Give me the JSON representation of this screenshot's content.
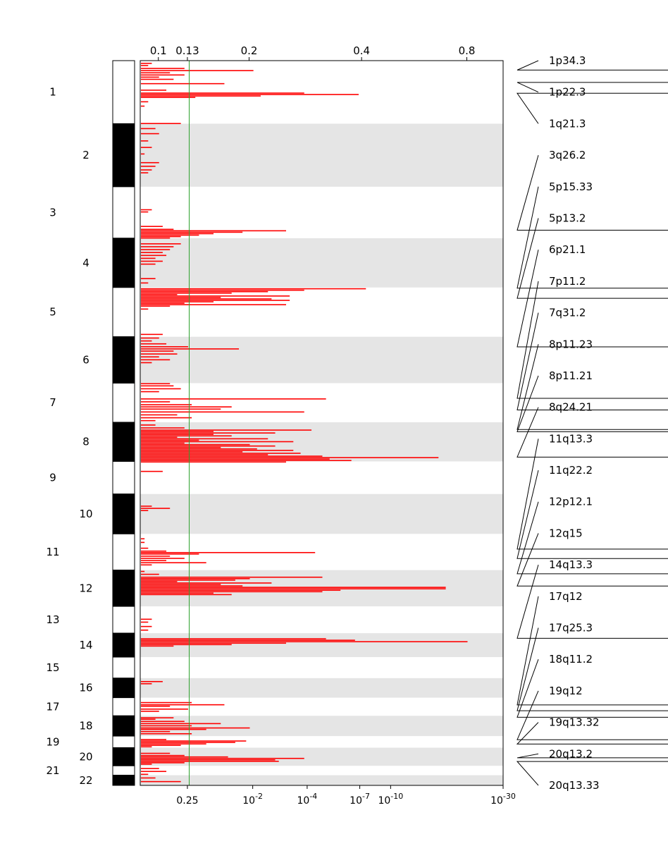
{
  "chart_data": {
    "type": "bar",
    "orientation": "horizontal",
    "description": "Genome-wide copy-number significance plot by chromosome",
    "top_axis_ticks": [
      "0.1",
      "0.13",
      "0.2",
      "0.4",
      "0.8"
    ],
    "top_axis_positions": [
      0.05,
      0.13,
      0.3,
      0.61,
      0.9
    ],
    "bottom_axis_ticks": [
      {
        "base": "0.25",
        "exp": "",
        "pos": 0.13
      },
      {
        "base": "10",
        "exp": "-2",
        "pos": 0.31
      },
      {
        "base": "10",
        "exp": "-4",
        "pos": 0.46
      },
      {
        "base": "10",
        "exp": "-7",
        "pos": 0.605
      },
      {
        "base": "10",
        "exp": "-10",
        "pos": 0.69
      },
      {
        "base": "10",
        "exp": "-30",
        "pos": 1.0
      }
    ],
    "threshold_value": "0.25",
    "threshold_pos": 0.135,
    "chromosomes": [
      {
        "name": "1",
        "start": 0.0,
        "end": 0.087
      },
      {
        "name": "2",
        "start": 0.087,
        "end": 0.174
      },
      {
        "name": "3",
        "start": 0.174,
        "end": 0.245
      },
      {
        "name": "4",
        "start": 0.245,
        "end": 0.313
      },
      {
        "name": "5",
        "start": 0.313,
        "end": 0.381
      },
      {
        "name": "6",
        "start": 0.381,
        "end": 0.445
      },
      {
        "name": "7",
        "start": 0.445,
        "end": 0.499
      },
      {
        "name": "8",
        "start": 0.499,
        "end": 0.553
      },
      {
        "name": "9",
        "start": 0.553,
        "end": 0.598
      },
      {
        "name": "10",
        "start": 0.598,
        "end": 0.653
      },
      {
        "name": "11",
        "start": 0.653,
        "end": 0.703
      },
      {
        "name": "12",
        "start": 0.703,
        "end": 0.753
      },
      {
        "name": "13",
        "start": 0.753,
        "end": 0.79
      },
      {
        "name": "14",
        "start": 0.79,
        "end": 0.823
      },
      {
        "name": "15",
        "start": 0.823,
        "end": 0.852
      },
      {
        "name": "16",
        "start": 0.852,
        "end": 0.879
      },
      {
        "name": "17",
        "start": 0.879,
        "end": 0.904
      },
      {
        "name": "18",
        "start": 0.904,
        "end": 0.932
      },
      {
        "name": "19",
        "start": 0.932,
        "end": 0.948
      },
      {
        "name": "20",
        "start": 0.948,
        "end": 0.973
      },
      {
        "name": "21",
        "start": 0.973,
        "end": 0.986
      },
      {
        "name": "22",
        "start": 0.986,
        "end": 1.0
      }
    ],
    "peaks": [
      {
        "label": "1p34.3",
        "pos": 0.013
      },
      {
        "label": "1p22.3",
        "pos": 0.03
      },
      {
        "label": "1q21.3",
        "pos": 0.045
      },
      {
        "label": "3q26.2",
        "pos": 0.234
      },
      {
        "label": "5p15.33",
        "pos": 0.314
      },
      {
        "label": "5p13.2",
        "pos": 0.328
      },
      {
        "label": "6p21.1",
        "pos": 0.395
      },
      {
        "label": "7p11.2",
        "pos": 0.466
      },
      {
        "label": "7q31.2",
        "pos": 0.482
      },
      {
        "label": "8p11.23",
        "pos": 0.509
      },
      {
        "label": "8p11.21",
        "pos": 0.512
      },
      {
        "label": "8q24.21",
        "pos": 0.547
      },
      {
        "label": "11q13.3",
        "pos": 0.674
      },
      {
        "label": "11q22.2",
        "pos": 0.687
      },
      {
        "label": "12p12.1",
        "pos": 0.708
      },
      {
        "label": "12q15",
        "pos": 0.725
      },
      {
        "label": "14q13.3",
        "pos": 0.797
      },
      {
        "label": "17q12",
        "pos": 0.889
      },
      {
        "label": "17q25.3",
        "pos": 0.897
      },
      {
        "label": "18q11.2",
        "pos": 0.906
      },
      {
        "label": "19q12",
        "pos": 0.937
      },
      {
        "label": "19q13.32",
        "pos": 0.943
      },
      {
        "label": "20q13.2",
        "pos": 0.962
      },
      {
        "label": "20q13.33",
        "pos": 0.967
      }
    ],
    "bars": [
      [
        0.003,
        0.03
      ],
      [
        0.006,
        0.02
      ],
      [
        0.01,
        0.12
      ],
      [
        0.013,
        0.31
      ],
      [
        0.016,
        0.08
      ],
      [
        0.019,
        0.12
      ],
      [
        0.022,
        0.05
      ],
      [
        0.025,
        0.09
      ],
      [
        0.031,
        0.23
      ],
      [
        0.04,
        0.07
      ],
      [
        0.044,
        0.45
      ],
      [
        0.046,
        0.6
      ],
      [
        0.048,
        0.33
      ],
      [
        0.05,
        0.15
      ],
      [
        0.056,
        0.02
      ],
      [
        0.062,
        0.01
      ],
      [
        0.086,
        0.11
      ],
      [
        0.093,
        0.04
      ],
      [
        0.1,
        0.05
      ],
      [
        0.11,
        0.02
      ],
      [
        0.119,
        0.03
      ],
      [
        0.128,
        0.01
      ],
      [
        0.14,
        0.05
      ],
      [
        0.145,
        0.04
      ],
      [
        0.15,
        0.03
      ],
      [
        0.154,
        0.02
      ],
      [
        0.205,
        0.03
      ],
      [
        0.208,
        0.02
      ],
      [
        0.228,
        0.06
      ],
      [
        0.232,
        0.09
      ],
      [
        0.234,
        0.4
      ],
      [
        0.236,
        0.28
      ],
      [
        0.238,
        0.2
      ],
      [
        0.24,
        0.16
      ],
      [
        0.242,
        0.11
      ],
      [
        0.244,
        0.08
      ],
      [
        0.252,
        0.11
      ],
      [
        0.256,
        0.09
      ],
      [
        0.26,
        0.08
      ],
      [
        0.264,
        0.06
      ],
      [
        0.268,
        0.07
      ],
      [
        0.272,
        0.04
      ],
      [
        0.276,
        0.06
      ],
      [
        0.28,
        0.04
      ],
      [
        0.3,
        0.04
      ],
      [
        0.306,
        0.02
      ],
      [
        0.314,
        0.62
      ],
      [
        0.316,
        0.45
      ],
      [
        0.318,
        0.35
      ],
      [
        0.32,
        0.25
      ],
      [
        0.322,
        0.1
      ],
      [
        0.324,
        0.41
      ],
      [
        0.326,
        0.22
      ],
      [
        0.328,
        0.36
      ],
      [
        0.33,
        0.41
      ],
      [
        0.332,
        0.2
      ],
      [
        0.334,
        0.12
      ],
      [
        0.336,
        0.4
      ],
      [
        0.338,
        0.08
      ],
      [
        0.342,
        0.02
      ],
      [
        0.377,
        0.06
      ],
      [
        0.382,
        0.05
      ],
      [
        0.386,
        0.03
      ],
      [
        0.39,
        0.07
      ],
      [
        0.394,
        0.13
      ],
      [
        0.397,
        0.27
      ],
      [
        0.4,
        0.09
      ],
      [
        0.404,
        0.1
      ],
      [
        0.408,
        0.05
      ],
      [
        0.412,
        0.08
      ],
      [
        0.416,
        0.03
      ],
      [
        0.445,
        0.08
      ],
      [
        0.448,
        0.09
      ],
      [
        0.452,
        0.11
      ],
      [
        0.456,
        0.05
      ],
      [
        0.466,
        0.51
      ],
      [
        0.47,
        0.08
      ],
      [
        0.474,
        0.14
      ],
      [
        0.477,
        0.25
      ],
      [
        0.48,
        0.22
      ],
      [
        0.484,
        0.45
      ],
      [
        0.488,
        0.1
      ],
      [
        0.492,
        0.14
      ],
      [
        0.496,
        0.04
      ],
      [
        0.502,
        0.04
      ],
      [
        0.506,
        0.12
      ],
      [
        0.509,
        0.47
      ],
      [
        0.511,
        0.2
      ],
      [
        0.513,
        0.37
      ],
      [
        0.515,
        0.2
      ],
      [
        0.517,
        0.25
      ],
      [
        0.519,
        0.1
      ],
      [
        0.521,
        0.35
      ],
      [
        0.523,
        0.16
      ],
      [
        0.525,
        0.42
      ],
      [
        0.527,
        0.12
      ],
      [
        0.529,
        0.3
      ],
      [
        0.531,
        0.37
      ],
      [
        0.533,
        0.22
      ],
      [
        0.535,
        0.32
      ],
      [
        0.537,
        0.42
      ],
      [
        0.539,
        0.28
      ],
      [
        0.541,
        0.44
      ],
      [
        0.543,
        0.35
      ],
      [
        0.545,
        0.5
      ],
      [
        0.547,
        0.82
      ],
      [
        0.549,
        0.52
      ],
      [
        0.551,
        0.58
      ],
      [
        0.553,
        0.4
      ],
      [
        0.566,
        0.06
      ],
      [
        0.614,
        0.03
      ],
      [
        0.617,
        0.08
      ],
      [
        0.62,
        0.02
      ],
      [
        0.659,
        0.01
      ],
      [
        0.664,
        0.01
      ],
      [
        0.672,
        0.02
      ],
      [
        0.676,
        0.07
      ],
      [
        0.678,
        0.48
      ],
      [
        0.68,
        0.16
      ],
      [
        0.683,
        0.08
      ],
      [
        0.686,
        0.12
      ],
      [
        0.689,
        0.07
      ],
      [
        0.692,
        0.18
      ],
      [
        0.695,
        0.03
      ],
      [
        0.704,
        0.01
      ],
      [
        0.708,
        0.05
      ],
      [
        0.712,
        0.5
      ],
      [
        0.714,
        0.3
      ],
      [
        0.716,
        0.26
      ],
      [
        0.718,
        0.1
      ],
      [
        0.72,
        0.36
      ],
      [
        0.722,
        0.22
      ],
      [
        0.724,
        0.28
      ],
      [
        0.726,
        0.84
      ],
      [
        0.728,
        0.84
      ],
      [
        0.73,
        0.55
      ],
      [
        0.732,
        0.5
      ],
      [
        0.734,
        0.2
      ],
      [
        0.736,
        0.25
      ],
      [
        0.77,
        0.03
      ],
      [
        0.774,
        0.02
      ],
      [
        0.78,
        0.03
      ],
      [
        0.785,
        0.02
      ],
      [
        0.797,
        0.51
      ],
      [
        0.799,
        0.59
      ],
      [
        0.801,
        0.9
      ],
      [
        0.803,
        0.4
      ],
      [
        0.805,
        0.25
      ],
      [
        0.807,
        0.09
      ],
      [
        0.856,
        0.06
      ],
      [
        0.859,
        0.03
      ],
      [
        0.885,
        0.14
      ],
      [
        0.888,
        0.23
      ],
      [
        0.89,
        0.08
      ],
      [
        0.894,
        0.13
      ],
      [
        0.897,
        0.05
      ],
      [
        0.906,
        0.09
      ],
      [
        0.908,
        0.04
      ],
      [
        0.911,
        0.12
      ],
      [
        0.914,
        0.22
      ],
      [
        0.917,
        0.14
      ],
      [
        0.92,
        0.3
      ],
      [
        0.922,
        0.18
      ],
      [
        0.925,
        0.08
      ],
      [
        0.928,
        0.14
      ],
      [
        0.936,
        0.07
      ],
      [
        0.938,
        0.29
      ],
      [
        0.94,
        0.26
      ],
      [
        0.942,
        0.18
      ],
      [
        0.944,
        0.11
      ],
      [
        0.946,
        0.03
      ],
      [
        0.955,
        0.08
      ],
      [
        0.958,
        0.12
      ],
      [
        0.96,
        0.24
      ],
      [
        0.962,
        0.45
      ],
      [
        0.964,
        0.37
      ],
      [
        0.966,
        0.38
      ],
      [
        0.968,
        0.12
      ],
      [
        0.97,
        0.03
      ],
      [
        0.976,
        0.05
      ],
      [
        0.98,
        0.07
      ],
      [
        0.984,
        0.02
      ],
      [
        0.989,
        0.04
      ],
      [
        0.994,
        0.11
      ]
    ]
  },
  "colors": {
    "bar": "#ff0000",
    "threshold": "#2ca02c",
    "band": "#e5e5e5",
    "ideogram_dark": "#000000",
    "ideogram_light": "#ffffff"
  }
}
